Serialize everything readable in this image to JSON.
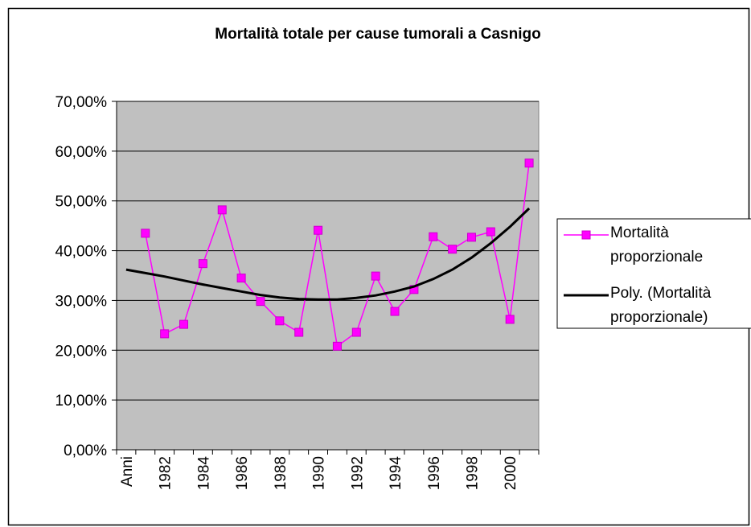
{
  "chart_data": {
    "type": "line",
    "title": "Mortalità totale per cause tumorali a Casnigo",
    "categories": [
      "Anni",
      null,
      "1982",
      null,
      "1984",
      null,
      "1986",
      null,
      "1988",
      null,
      "1990",
      null,
      "1992",
      null,
      "1994",
      null,
      "1996",
      null,
      "1998",
      null,
      "2000",
      null
    ],
    "series": [
      {
        "name": "Mortalità proporzionale",
        "color": "#ff00ff",
        "marker": "square",
        "values": [
          null,
          43.5,
          23.3,
          25.2,
          37.4,
          48.2,
          34.5,
          29.8,
          25.9,
          23.6,
          44.1,
          20.8,
          23.6,
          34.9,
          27.8,
          32.2,
          42.8,
          40.3,
          42.7,
          43.8,
          26.2,
          57.6
        ]
      },
      {
        "name": "Poly. (Mortalità proporzionale)",
        "color": "#000000",
        "values": [
          36.2,
          35.5,
          34.8,
          34.0,
          33.2,
          32.5,
          31.8,
          31.1,
          30.6,
          30.3,
          30.2,
          30.2,
          30.5,
          31.0,
          31.8,
          32.8,
          34.3,
          36.2,
          38.6,
          41.5,
          44.8,
          48.5
        ]
      }
    ],
    "ylim": [
      0,
      70
    ],
    "yticks": [
      {
        "value": 0,
        "label": "0,00%"
      },
      {
        "value": 10,
        "label": "10,00%"
      },
      {
        "value": 20,
        "label": "20,00%"
      },
      {
        "value": 30,
        "label": "30,00%"
      },
      {
        "value": 40,
        "label": "40,00%"
      },
      {
        "value": 50,
        "label": "50,00%"
      },
      {
        "value": 60,
        "label": "60,00%"
      },
      {
        "value": 70,
        "label": "70,00%"
      }
    ],
    "grid": true,
    "plot_background": "#c0c0c0",
    "legend": "right"
  }
}
